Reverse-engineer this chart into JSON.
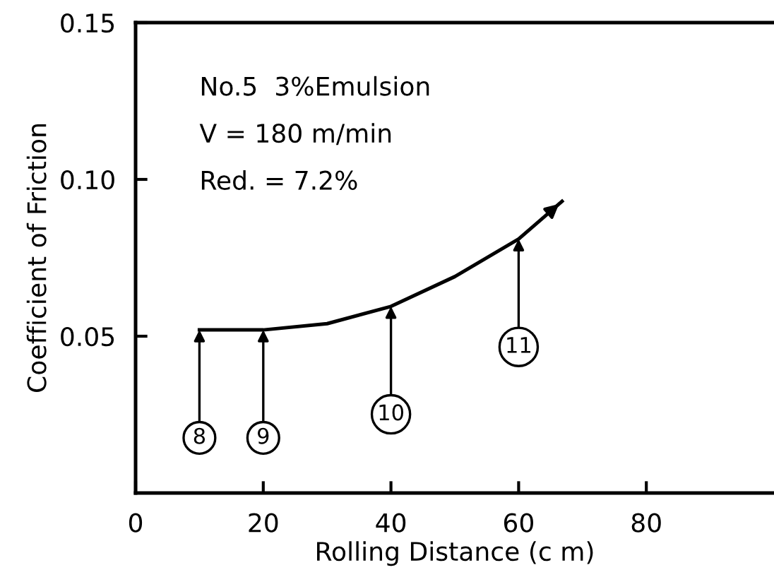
{
  "chart_data": {
    "type": "line",
    "xlabel": "Rolling Distance (c m)",
    "ylabel": "Coefficient of Friction",
    "series": [
      {
        "color": "#000000",
        "x": [
          10,
          20,
          30,
          40,
          50,
          60,
          66.8
        ],
        "values": [
          0.052,
          0.052,
          0.054,
          0.0595,
          0.069,
          0.081,
          0.093
        ]
      }
    ],
    "xlim": [
      0,
      100
    ],
    "ylim": [
      0,
      0.15
    ],
    "xticks": [
      0,
      20,
      40,
      60,
      80
    ],
    "yticks": [
      {
        "value": 0.05,
        "label": "0.05"
      },
      {
        "value": 0.1,
        "label": "0.10"
      },
      {
        "value": 0.15,
        "label": "0.15"
      }
    ],
    "grid": false,
    "legend": false,
    "marker": "none",
    "line_style": "solid",
    "annotations": [
      "No.5  3%Emulsion",
      "V = 180 m/min",
      "Red. = 7.2%",
      {
        "text": "8",
        "x": 10,
        "y": 0.052
      },
      {
        "text": "9",
        "x": 20,
        "y": 0.052
      },
      {
        "text": "10",
        "x": 40,
        "y": 0.0595
      },
      {
        "text": "11",
        "x": 60,
        "y": 0.081
      }
    ]
  }
}
